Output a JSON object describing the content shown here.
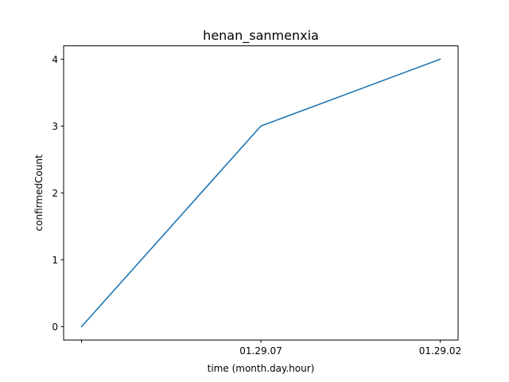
{
  "chart_data": {
    "type": "line",
    "title": "henan_sanmenxia",
    "xlabel": "time (month.day.hour)",
    "ylabel": "confirmedCount",
    "categories": [
      "",
      "01.29.07",
      "01.29.02"
    ],
    "series": [
      {
        "values": [
          0,
          3,
          4
        ],
        "color": "#1f77b4"
      }
    ],
    "ylim": [
      -0.2,
      4.2
    ],
    "yticks": [
      0,
      1,
      2,
      3,
      4
    ],
    "grid": false,
    "legend": "none"
  }
}
